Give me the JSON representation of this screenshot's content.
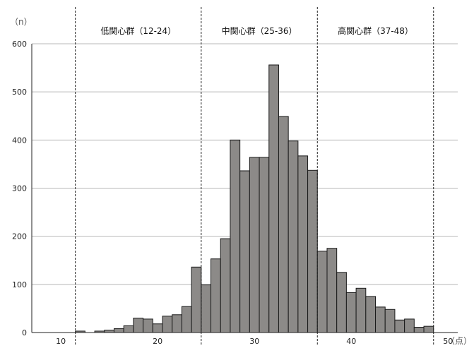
{
  "chart_data": {
    "type": "bar",
    "y_unit_label": "（n）",
    "x_unit_label": "（点）",
    "xlim": [
      7,
      51
    ],
    "ylim": [
      0,
      600
    ],
    "x_ticks": [
      10,
      20,
      30,
      40,
      50
    ],
    "y_ticks": [
      0,
      100,
      200,
      300,
      400,
      500,
      600
    ],
    "grid": true,
    "groups": [
      {
        "label": "低関心群（12-24）",
        "start": 12,
        "end": 24
      },
      {
        "label": "中関心群（25-36）",
        "start": 25,
        "end": 36
      },
      {
        "label": "高関心群（37-48）",
        "start": 37,
        "end": 48
      }
    ],
    "x": [
      12,
      13,
      14,
      15,
      16,
      17,
      18,
      19,
      20,
      21,
      22,
      23,
      24,
      25,
      26,
      27,
      28,
      29,
      30,
      31,
      32,
      33,
      34,
      35,
      36,
      37,
      38,
      39,
      40,
      41,
      42,
      43,
      44,
      45,
      46,
      47,
      48
    ],
    "values": [
      3,
      0,
      3,
      5,
      8,
      14,
      30,
      28,
      18,
      34,
      37,
      54,
      136,
      99,
      153,
      195,
      400,
      336,
      364,
      364,
      556,
      449,
      398,
      367,
      337,
      169,
      175,
      125,
      83,
      92,
      75,
      53,
      48,
      26,
      28,
      11,
      13
    ]
  }
}
